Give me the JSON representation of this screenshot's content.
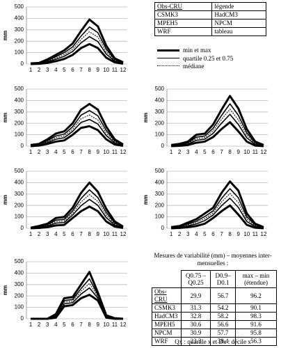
{
  "chart_data": [
    {
      "type": "line",
      "y_label": "mm",
      "categories": [
        1,
        2,
        3,
        4,
        5,
        6,
        7,
        8,
        9,
        10,
        11,
        12
      ],
      "ylim": [
        0,
        500
      ],
      "yticks": [
        0,
        100,
        200,
        300,
        400,
        500
      ],
      "grid": true,
      "series": [
        {
          "color": "#000000",
          "width": 3,
          "dash": "none",
          "values": [
            5,
            10,
            40,
            80,
            120,
            180,
            290,
            390,
            330,
            160,
            50,
            15
          ]
        },
        {
          "color": "#000000",
          "width": 1.6,
          "dash": "none",
          "values": [
            4,
            8,
            30,
            65,
            100,
            150,
            245,
            325,
            275,
            130,
            40,
            11
          ]
        },
        {
          "color": "#000000",
          "width": 1,
          "dash": "2 1.5",
          "values": [
            3,
            6,
            25,
            53,
            83,
            130,
            215,
            283,
            235,
            108,
            33,
            9
          ]
        },
        {
          "color": "#000000",
          "width": 1.6,
          "dash": "none",
          "values": [
            2,
            4,
            20,
            42,
            68,
            110,
            185,
            240,
            197,
            87,
            26,
            7
          ]
        },
        {
          "color": "#000000",
          "width": 3,
          "dash": "none",
          "values": [
            0,
            2,
            10,
            25,
            45,
            80,
            140,
            175,
            140,
            55,
            15,
            3
          ]
        }
      ]
    },
    {
      "type": "line",
      "y_label": "mm",
      "categories": [
        1,
        2,
        3,
        4,
        5,
        6,
        7,
        8,
        9,
        10,
        11,
        12
      ],
      "ylim": [
        0,
        500
      ],
      "yticks": [
        0,
        100,
        200,
        300,
        400,
        500
      ],
      "grid": true,
      "series": [
        {
          "color": "#000000",
          "width": 3,
          "dash": "none",
          "values": [
            10,
            20,
            60,
            110,
            130,
            200,
            320,
            370,
            320,
            170,
            60,
            15
          ]
        },
        {
          "color": "#000000",
          "width": 1.6,
          "dash": "none",
          "values": [
            7,
            16,
            48,
            89,
            106,
            170,
            272,
            312,
            266,
            137,
            47,
            11
          ]
        },
        {
          "color": "#000000",
          "width": 1,
          "dash": "2 1.5",
          "values": [
            5,
            13,
            40,
            75,
            90,
            150,
            240,
            273,
            230,
            115,
            38,
            9
          ]
        },
        {
          "color": "#000000",
          "width": 1.6,
          "dash": "none",
          "values": [
            3,
            10,
            32,
            61,
            74,
            130,
            208,
            234,
            194,
            93,
            29,
            7
          ]
        },
        {
          "color": "#000000",
          "width": 3,
          "dash": "none",
          "values": [
            0,
            5,
            20,
            40,
            50,
            100,
            160,
            175,
            140,
            60,
            15,
            3
          ]
        }
      ]
    },
    {
      "type": "line",
      "y_label": "mm",
      "categories": [
        1,
        2,
        3,
        4,
        5,
        6,
        7,
        8,
        9,
        10,
        11,
        12
      ],
      "ylim": [
        0,
        500
      ],
      "yticks": [
        0,
        100,
        200,
        300,
        400,
        500
      ],
      "grid": true,
      "series": [
        {
          "color": "#000000",
          "width": 3,
          "dash": "none",
          "values": [
            10,
            20,
            40,
            100,
            110,
            190,
            320,
            440,
            330,
            150,
            40,
            10
          ]
        },
        {
          "color": "#000000",
          "width": 1.6,
          "dash": "none",
          "values": [
            7,
            15,
            31,
            79,
            89,
            157,
            269,
            371,
            270,
            117,
            30,
            7
          ]
        },
        {
          "color": "#000000",
          "width": 1,
          "dash": "2 1.5",
          "values": [
            5,
            12,
            25,
            65,
            75,
            135,
            235,
            325,
            230,
            95,
            23,
            5
          ]
        },
        {
          "color": "#000000",
          "width": 1.6,
          "dash": "none",
          "values": [
            3,
            8,
            19,
            51,
            61,
            113,
            201,
            279,
            190,
            73,
            16,
            3
          ]
        },
        {
          "color": "#000000",
          "width": 3,
          "dash": "none",
          "values": [
            0,
            3,
            10,
            30,
            40,
            80,
            150,
            210,
            130,
            40,
            5,
            0
          ]
        }
      ]
    },
    {
      "type": "line",
      "y_label": "mm",
      "categories": [
        1,
        2,
        3,
        4,
        5,
        6,
        7,
        8,
        9,
        10,
        11,
        12
      ],
      "ylim": [
        0,
        500
      ],
      "yticks": [
        0,
        100,
        200,
        300,
        400,
        500
      ],
      "grid": true,
      "series": [
        {
          "color": "#000000",
          "width": 3,
          "dash": "none",
          "values": [
            5,
            20,
            40,
            90,
            100,
            180,
            310,
            400,
            320,
            170,
            60,
            15
          ]
        },
        {
          "color": "#000000",
          "width": 1.6,
          "dash": "none",
          "values": [
            4,
            15,
            31,
            71,
            79,
            153,
            262,
            337,
            269,
            137,
            47,
            11
          ]
        },
        {
          "color": "#000000",
          "width": 1,
          "dash": "2 1.5",
          "values": [
            3,
            12,
            25,
            58,
            65,
            135,
            230,
            295,
            235,
            115,
            38,
            9
          ]
        },
        {
          "color": "#000000",
          "width": 1.6,
          "dash": "none",
          "values": [
            2,
            8,
            19,
            45,
            51,
            117,
            198,
            253,
            201,
            93,
            29,
            7
          ]
        },
        {
          "color": "#000000",
          "width": 3,
          "dash": "none",
          "values": [
            0,
            3,
            10,
            25,
            30,
            90,
            150,
            190,
            150,
            60,
            15,
            3
          ]
        }
      ]
    },
    {
      "type": "line",
      "y_label": "mm",
      "categories": [
        1,
        2,
        3,
        4,
        5,
        6,
        7,
        8,
        9,
        10,
        11,
        12
      ],
      "ylim": [
        0,
        500
      ],
      "yticks": [
        0,
        100,
        200,
        300,
        400,
        500
      ],
      "grid": true,
      "series": [
        {
          "color": "#000000",
          "width": 3,
          "dash": "none",
          "values": [
            10,
            20,
            50,
            80,
            130,
            180,
            310,
            410,
            330,
            130,
            40,
            10
          ]
        },
        {
          "color": "#000000",
          "width": 1.6,
          "dash": "none",
          "values": [
            7,
            15,
            38,
            62,
            103,
            153,
            262,
            347,
            267,
            100,
            30,
            7
          ]
        },
        {
          "color": "#000000",
          "width": 1,
          "dash": "2 1.5",
          "values": [
            5,
            12,
            30,
            50,
            85,
            135,
            230,
            305,
            225,
            80,
            23,
            5
          ]
        },
        {
          "color": "#000000",
          "width": 1.6,
          "dash": "none",
          "values": [
            3,
            8,
            22,
            38,
            67,
            117,
            198,
            263,
            183,
            60,
            16,
            3
          ]
        },
        {
          "color": "#000000",
          "width": 3,
          "dash": "none",
          "values": [
            0,
            3,
            10,
            20,
            40,
            90,
            150,
            200,
            120,
            30,
            5,
            0
          ]
        }
      ]
    },
    {
      "type": "line",
      "y_label": "mm",
      "categories": [
        1,
        2,
        3,
        4,
        5,
        6,
        7,
        8,
        9,
        10,
        11,
        12
      ],
      "ylim": [
        0,
        500
      ],
      "yticks": [
        0,
        100,
        200,
        300,
        400,
        500
      ],
      "grid": true,
      "series": [
        {
          "color": "#000000",
          "width": 3,
          "dash": "none",
          "values": [
            0,
            0,
            0,
            40,
            180,
            190,
            300,
            410,
            230,
            30,
            5,
            0
          ]
        },
        {
          "color": "#000000",
          "width": 1.6,
          "dash": "none",
          "values": [
            0,
            0,
            0,
            31,
            159,
            169,
            264,
            350,
            209,
            24,
            4,
            0
          ]
        },
        {
          "color": "#000000",
          "width": 1,
          "dash": "2 1.5",
          "values": [
            0,
            0,
            0,
            25,
            145,
            155,
            240,
            310,
            195,
            20,
            3,
            0
          ]
        },
        {
          "color": "#000000",
          "width": 1.6,
          "dash": "none",
          "values": [
            0,
            0,
            0,
            19,
            131,
            141,
            216,
            270,
            181,
            16,
            2,
            0
          ]
        },
        {
          "color": "#000000",
          "width": 3,
          "dash": "none",
          "values": [
            0,
            0,
            0,
            10,
            110,
            120,
            180,
            210,
            160,
            10,
            0,
            0
          ]
        }
      ]
    }
  ],
  "legend_table": [
    [
      "Obs-CRU",
      "légende"
    ],
    [
      "CSMK3",
      "HadCM3"
    ],
    [
      "MPEH5",
      "NPCM"
    ],
    [
      "WRF",
      "tableau"
    ]
  ],
  "line_legend": [
    "min et max",
    "quartile 0.25 et 0.75",
    "médiane"
  ],
  "variability_table": {
    "title": "Mesures de variabilité (mm) – moyennes inter-mensuelles :",
    "header": [
      "Q0.75 – Q0.25",
      "D0.9–D0.1",
      "max – min (étendue)"
    ],
    "rows": [
      [
        "Obs-CRU",
        29.9,
        56.7,
        96.2
      ],
      [
        "CSMK3",
        31.3,
        54.2,
        90.1
      ],
      [
        "HadCM3",
        32.8,
        58.2,
        98.3
      ],
      [
        "MPEH5",
        30.6,
        56.6,
        91.6
      ],
      [
        "NPCM",
        30.9,
        57.7,
        95.8
      ],
      [
        "WRF",
        23.3,
        38.4,
        56.3
      ]
    ],
    "footnote": "Qx : quartile x et Dx : décile x"
  }
}
